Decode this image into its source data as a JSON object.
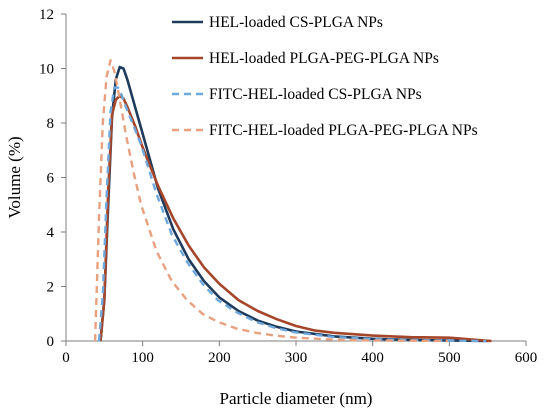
{
  "chart_data": {
    "type": "line",
    "title": "",
    "xlabel": "Particle diameter (nm)",
    "ylabel": "Volume (%)",
    "xlim": [
      0,
      600
    ],
    "ylim": [
      0,
      12
    ],
    "x_ticks": [
      "0",
      "100",
      "200",
      "300",
      "400",
      "500",
      "600"
    ],
    "y_ticks": [
      "0",
      "2",
      "4",
      "6",
      "8",
      "10",
      "12"
    ],
    "grid": false,
    "legend_position": "top-right",
    "series": [
      {
        "name": "HEL-loaded CS-PLGA NPs",
        "color": "#1f3b5c",
        "dash": "solid",
        "x": [
          45,
          50,
          55,
          60,
          65,
          70,
          75,
          80,
          90,
          100,
          120,
          140,
          160,
          180,
          200,
          225,
          250,
          275,
          300,
          350,
          400,
          450,
          500,
          550
        ],
        "y": [
          0.0,
          1.5,
          5.0,
          8.2,
          9.6,
          10.05,
          10.0,
          9.6,
          8.6,
          7.6,
          5.6,
          4.1,
          3.0,
          2.2,
          1.6,
          1.1,
          0.75,
          0.52,
          0.35,
          0.17,
          0.08,
          0.04,
          0.02,
          0.0
        ]
      },
      {
        "name": "HEL-loaded PLGA-PEG-PLGA NPs",
        "color": "#a5462a",
        "dash": "solid",
        "x": [
          45,
          50,
          55,
          60,
          65,
          70,
          75,
          80,
          90,
          100,
          120,
          140,
          160,
          180,
          200,
          225,
          250,
          275,
          300,
          325,
          350,
          400,
          450,
          500,
          530,
          555
        ],
        "y": [
          0.0,
          1.5,
          5.5,
          8.3,
          8.85,
          9.0,
          8.9,
          8.6,
          7.9,
          7.1,
          5.7,
          4.5,
          3.5,
          2.7,
          2.1,
          1.5,
          1.1,
          0.8,
          0.55,
          0.38,
          0.3,
          0.2,
          0.14,
          0.12,
          0.05,
          0.0
        ]
      },
      {
        "name": "FITC-HEL-loaded CS-PLGA NPs",
        "color": "#6fa8dc",
        "dash": "dashed",
        "x": [
          43,
          48,
          53,
          58,
          63,
          68,
          73,
          78,
          88,
          98,
          118,
          138,
          158,
          178,
          198,
          223,
          248,
          273,
          298,
          348,
          398,
          448,
          498,
          548
        ],
        "y": [
          0.0,
          1.7,
          5.3,
          8.4,
          9.3,
          9.3,
          9.0,
          8.6,
          7.9,
          7.2,
          5.4,
          3.9,
          2.9,
          2.1,
          1.5,
          1.05,
          0.7,
          0.48,
          0.32,
          0.15,
          0.07,
          0.03,
          0.01,
          0.0
        ]
      },
      {
        "name": "FITC-HEL-loaded PLGA-PEG-PLGA NPs",
        "color": "#e8a07f",
        "dash": "dashed",
        "x": [
          38,
          43,
          48,
          53,
          58,
          63,
          68,
          73,
          78,
          88,
          98,
          118,
          138,
          158,
          178,
          198,
          223,
          248,
          273,
          298,
          348,
          398,
          448,
          498
        ],
        "y": [
          0.0,
          4.5,
          8.0,
          9.7,
          10.3,
          9.9,
          9.2,
          8.4,
          7.6,
          6.2,
          5.0,
          3.3,
          2.2,
          1.5,
          1.0,
          0.7,
          0.45,
          0.3,
          0.2,
          0.13,
          0.05,
          0.02,
          0.01,
          0.0
        ]
      }
    ]
  }
}
